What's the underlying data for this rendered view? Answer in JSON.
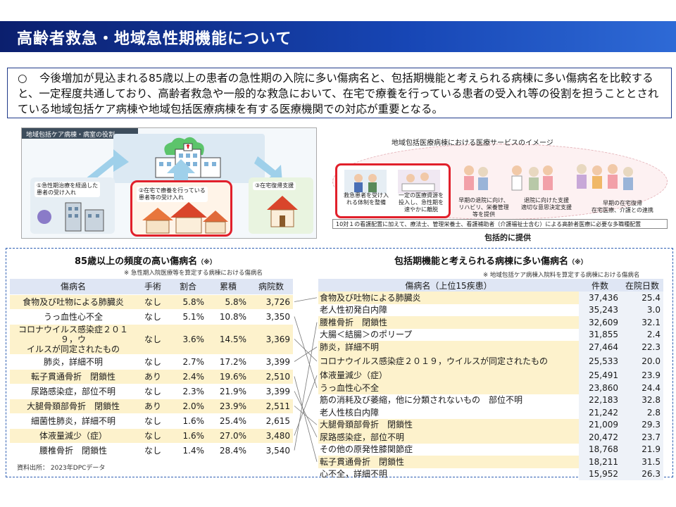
{
  "header": {
    "title": "高齢者救急・地域急性期機能について"
  },
  "summary": {
    "mark": "○",
    "text": "今後増加が見込まれる85歳以上の患者の急性期の入院に多い傷病名と、包括期機能と考えられる病棟に多い傷病名を比較すると、一定程度共通しており、高齢者救急や一般的な救急において、在宅で療養を行っている患者の受入れ等の役割を担うこととされている地域包括ケア病棟や地域包括医療病棟を有する医療機関での対応が重要となる。"
  },
  "diagram_left": {
    "header": "地域包括ケア病棟・病室の役割",
    "box1": "①急性期治療を経過した\n患者の受け入れ",
    "box2": "②在宅で療養を行っている\n患者等の受け入れ",
    "box3": "③在宅復帰支援"
  },
  "diagram_right": {
    "header": "地域包括医療病棟における医療サービスのイメージ",
    "captions": [
      "救急患者を受け入\nれる体制を整備",
      "一定の医療資源を\n投入し、急性期を\n速やかに離脱",
      "早期の退院に向け、\nリハビリ、栄養管理\n等を提供",
      "退院に向けた支援\n適切な意思決定支援",
      "早期の在宅復帰\n在宅医療、介護との連携"
    ],
    "strip": "10対１の看護配置に加えて、療法士、管理栄養士、看護補助者（介護福祉士含む）による高齢者医療に必要な多職種配置",
    "inclusive": "包括的に提供"
  },
  "left_table": {
    "title": "85歳以上の頻度の高い傷病名",
    "title_suffix": "（※）",
    "note": "※ 急性期入院医療等を算定する病棟における傷病名",
    "columns": [
      "傷病名",
      "手術",
      "割合",
      "累積",
      "病院数"
    ],
    "rows": [
      {
        "name": "食物及び吐物による肺臓炎",
        "surgery": "なし",
        "ratio": "5.8%",
        "cumulative": "5.8%",
        "hospitals": "3,726"
      },
      {
        "name": "うっ血性心不全",
        "surgery": "なし",
        "ratio": "5.1%",
        "cumulative": "10.8%",
        "hospitals": "3,350"
      },
      {
        "name": "コロナウイルス感染症２０１９，ウ\nイルスが同定されたもの",
        "surgery": "なし",
        "ratio": "3.6%",
        "cumulative": "14.5%",
        "hospitals": "3,369"
      },
      {
        "name": "肺炎，詳細不明",
        "surgery": "なし",
        "ratio": "2.7%",
        "cumulative": "17.2%",
        "hospitals": "3,399"
      },
      {
        "name": "転子貫通骨折　閉鎖性",
        "surgery": "あり",
        "ratio": "2.4%",
        "cumulative": "19.6%",
        "hospitals": "2,510"
      },
      {
        "name": "尿路感染症，部位不明",
        "surgery": "なし",
        "ratio": "2.3%",
        "cumulative": "21.9%",
        "hospitals": "3,399"
      },
      {
        "name": "大腿骨頚部骨折　閉鎖性",
        "surgery": "あり",
        "ratio": "2.0%",
        "cumulative": "23.9%",
        "hospitals": "2,511"
      },
      {
        "name": "細菌性肺炎，詳細不明",
        "surgery": "なし",
        "ratio": "1.6%",
        "cumulative": "25.4%",
        "hospitals": "2,615"
      },
      {
        "name": "体液量減少（症）",
        "surgery": "なし",
        "ratio": "1.6%",
        "cumulative": "27.0%",
        "hospitals": "3,480"
      },
      {
        "name": "腰椎骨折　閉鎖性",
        "surgery": "なし",
        "ratio": "1.4%",
        "cumulative": "28.4%",
        "hospitals": "3,540"
      }
    ]
  },
  "right_table": {
    "title": "包括期機能と考えられる病棟に多い傷病名",
    "title_suffix": "（※）",
    "note": "※ 地域包括ケア病棟入院料を算定する病棟における傷病名",
    "columns": [
      "傷病名（上位15疾患）",
      "件数",
      "在院日数"
    ],
    "rows": [
      {
        "name": "食物及び吐物による肺臓炎",
        "count": "37,436",
        "days": "25.4"
      },
      {
        "name": "老人性初発白内障",
        "count": "35,243",
        "days": "3.0"
      },
      {
        "name": "腰椎骨折　閉鎖性",
        "count": "32,609",
        "days": "32.1"
      },
      {
        "name": "大腸＜結腸＞のポリープ",
        "count": "31,855",
        "days": "2.4"
      },
      {
        "name": "肺炎，詳細不明",
        "count": "27,464",
        "days": "22.3"
      },
      {
        "name": "コロナウイルス感染症２０１９，ウイルスが同定されたもの",
        "count": "25,533",
        "days": "20.0"
      },
      {
        "name": "体液量減少（症）",
        "count": "25,491",
        "days": "23.9"
      },
      {
        "name": "うっ血性心不全",
        "count": "23,860",
        "days": "24.4"
      },
      {
        "name": "筋の消耗及び萎縮，他に分類されないもの　部位不明",
        "count": "22,183",
        "days": "32.8"
      },
      {
        "name": "老人性核白内障",
        "count": "21,242",
        "days": "2.8"
      },
      {
        "name": "大腿骨頚部骨折　閉鎖性",
        "count": "21,009",
        "days": "29.3"
      },
      {
        "name": "尿路感染症，部位不明",
        "count": "20,472",
        "days": "23.7"
      },
      {
        "name": "その他の原発性膝関節症",
        "count": "18,768",
        "days": "21.9"
      },
      {
        "name": "転子貫通骨折　閉鎖性",
        "count": "18,211",
        "days": "31.5"
      },
      {
        "name": "心不全，詳細不明",
        "count": "15,952",
        "days": "26.3"
      }
    ],
    "highlighted": [
      0,
      2,
      4,
      5,
      6,
      7,
      10,
      11,
      13
    ]
  },
  "source": "資料出所：  2023年DPCデータ",
  "colors": {
    "title_bar": "#1746b5",
    "highlight": "#fdf2cc",
    "frame_red": "#e1202b",
    "panel_border": "#2f5fb3"
  }
}
